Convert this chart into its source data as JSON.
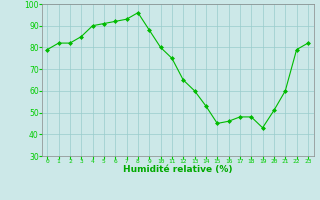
{
  "x": [
    0,
    1,
    2,
    3,
    4,
    5,
    6,
    7,
    8,
    9,
    10,
    11,
    12,
    13,
    14,
    15,
    16,
    17,
    18,
    19,
    20,
    21,
    22,
    23
  ],
  "y": [
    79,
    82,
    82,
    85,
    90,
    91,
    92,
    93,
    96,
    88,
    80,
    75,
    65,
    60,
    53,
    45,
    46,
    48,
    48,
    43,
    51,
    60,
    79,
    82
  ],
  "line_color": "#00bb00",
  "marker_color": "#00bb00",
  "bg_color": "#cce8e8",
  "grid_color": "#99cccc",
  "xlabel": "Humidité relative (%)",
  "xlabel_color": "#00aa00",
  "tick_color": "#00cc00",
  "ylim": [
    30,
    100
  ],
  "xlim_min": -0.5,
  "xlim_max": 23.5,
  "yticks": [
    30,
    40,
    50,
    60,
    70,
    80,
    90,
    100
  ],
  "xticks": [
    0,
    1,
    2,
    3,
    4,
    5,
    6,
    7,
    8,
    9,
    10,
    11,
    12,
    13,
    14,
    15,
    16,
    17,
    18,
    19,
    20,
    21,
    22,
    23
  ]
}
